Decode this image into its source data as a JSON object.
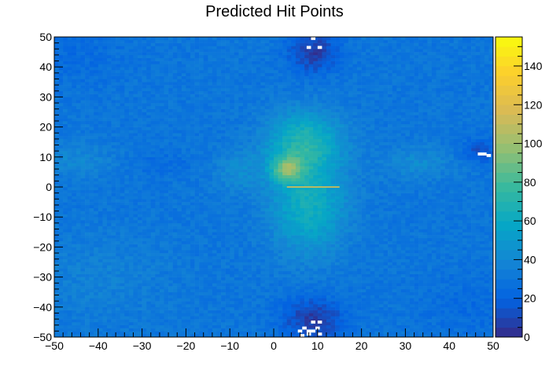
{
  "chart_data": {
    "type": "heatmap",
    "title": "Predicted Hit Points",
    "xlabel": "",
    "ylabel": "",
    "zlabel": "",
    "xlim": [
      -50,
      50
    ],
    "ylim": [
      -50,
      50
    ],
    "zlim": [
      0,
      155
    ],
    "x_ticks": [
      "−50",
      "−40",
      "−30",
      "−20",
      "−10",
      "0",
      "10",
      "20",
      "30",
      "40",
      "50"
    ],
    "y_ticks": [
      "−50",
      "−40",
      "−30",
      "−20",
      "−10",
      "0",
      "10",
      "20",
      "30",
      "40",
      "50"
    ],
    "z_ticks": [
      "0",
      "20",
      "40",
      "60",
      "80",
      "100",
      "120",
      "140"
    ],
    "colormap": "parula",
    "colors": [
      "#352a87",
      "#0363e1",
      "#1485d4",
      "#06a7c6",
      "#38b99e",
      "#92bf73",
      "#d9ba56",
      "#fcce2e",
      "#f9fb0e"
    ],
    "background_level": 30,
    "blobs": [
      {
        "x": 7,
        "y": 15,
        "sx": 6,
        "sy": 7,
        "amp": 38
      },
      {
        "x": 8,
        "y": -6,
        "sx": 6,
        "sy": 11,
        "amp": 34
      },
      {
        "x": 3,
        "y": 6,
        "sx": 2.5,
        "sy": 3,
        "amp": 45
      },
      {
        "x": -8,
        "y": 5,
        "sx": 4,
        "sy": 5,
        "amp": 12
      },
      {
        "x": 33,
        "y": 8,
        "sx": 6,
        "sy": 4,
        "amp": 12
      },
      {
        "x": -45,
        "y": 9,
        "sx": 6,
        "sy": 4,
        "amp": 10
      },
      {
        "x": 9,
        "y": 45,
        "sx": 4,
        "sy": 5,
        "amp": -24
      },
      {
        "x": 9,
        "y": -44,
        "sx": 5,
        "sy": 5,
        "amp": -24
      },
      {
        "x": -25,
        "y": 8,
        "sx": 5,
        "sy": 3,
        "amp": -6
      },
      {
        "x": 47,
        "y": 12,
        "sx": 3,
        "sy": 3,
        "amp": -16
      },
      {
        "x": -45,
        "y": 45,
        "sx": 8,
        "sy": 8,
        "amp": -6
      },
      {
        "x": 45,
        "y": -40,
        "sx": 8,
        "sy": 8,
        "amp": -6
      },
      {
        "x": -40,
        "y": -30,
        "sx": 12,
        "sy": 10,
        "amp": 6
      }
    ],
    "lines": [
      {
        "orientation": "horizontal",
        "y": 0,
        "x_from": 3,
        "x_to": 15,
        "level": 120
      }
    ],
    "empty_cells": [
      {
        "x": 9,
        "y": 49.5
      },
      {
        "x": 8,
        "y": 46.5
      },
      {
        "x": 10.5,
        "y": 46.5
      },
      {
        "x": 47,
        "y": 11
      },
      {
        "x": 48,
        "y": 11
      },
      {
        "x": 49,
        "y": 10.5
      },
      {
        "x": 6,
        "y": -48
      },
      {
        "x": 7,
        "y": -47
      },
      {
        "x": 8,
        "y": -49
      },
      {
        "x": 9,
        "y": -48
      },
      {
        "x": 10,
        "y": -47
      },
      {
        "x": 10.5,
        "y": -49
      },
      {
        "x": 9,
        "y": -45
      },
      {
        "x": 6.5,
        "y": -49.5
      },
      {
        "x": 10.5,
        "y": -45
      },
      {
        "x": 8,
        "y": -48
      }
    ]
  }
}
